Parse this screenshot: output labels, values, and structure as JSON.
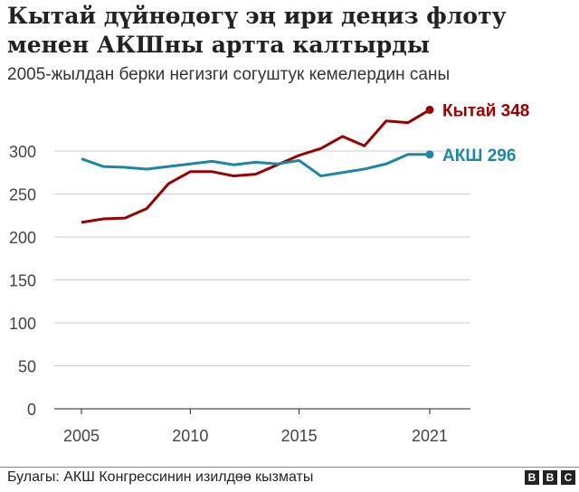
{
  "chart_data": {
    "type": "line",
    "title": "Кытай дүйнөдөгү эң ири деңиз флоту менен АКШны артта калтырды",
    "subtitle": "2005-жылдан берки негизги согуштук кемелердин саны",
    "x": [
      2005,
      2006,
      2007,
      2008,
      2009,
      2010,
      2011,
      2012,
      2013,
      2014,
      2015,
      2016,
      2017,
      2018,
      2019,
      2020,
      2021
    ],
    "xticks": [
      "2005",
      "2010",
      "2015",
      "2021"
    ],
    "yticks": [
      "0",
      "50",
      "100",
      "150",
      "200",
      "250",
      "300"
    ],
    "ylim": [
      0,
      350
    ],
    "grid": true,
    "series": [
      {
        "name": "Кытай",
        "end_label": "Кытай 348",
        "color": "#990000",
        "values": [
          217,
          221,
          222,
          233,
          262,
          276,
          276,
          271,
          273,
          284,
          295,
          303,
          317,
          306,
          335,
          333,
          348
        ]
      },
      {
        "name": "АКШ",
        "end_label": "АКШ 296",
        "color": "#1c86a3",
        "values": [
          291,
          282,
          281,
          279,
          282,
          285,
          288,
          284,
          287,
          285,
          289,
          271,
          275,
          279,
          285,
          296,
          296
        ]
      }
    ]
  },
  "footer": {
    "source": "Булагы: АКШ Конгрессинин изилдөө кызматы",
    "logo": [
      "B",
      "B",
      "C"
    ]
  }
}
